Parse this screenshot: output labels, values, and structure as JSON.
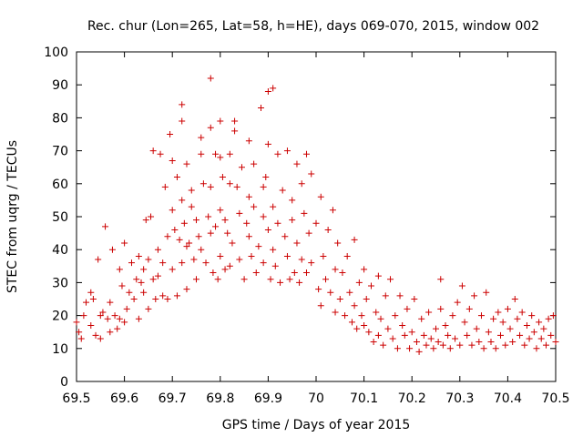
{
  "chart_data": {
    "type": "scatter",
    "title": "Rec. chur (Lon=265, Lat=58, h=HE), days 069-070, 2015, window 002",
    "xlabel": "GPS time / Days of year 2015",
    "ylabel": "STEC from uqrg / TECUs",
    "xlim": [
      69.5,
      70.5
    ],
    "ylim": [
      0,
      100
    ],
    "xticks": [
      "69.5",
      "69.6",
      "69.7",
      "69.8",
      "69.9",
      "70",
      "70.1",
      "70.2",
      "70.3",
      "70.4",
      "70.5"
    ],
    "yticks": [
      "0",
      "10",
      "20",
      "30",
      "40",
      "50",
      "60",
      "70",
      "80",
      "90",
      "100"
    ],
    "grid": false,
    "legend": "none",
    "marker": "+",
    "series": [
      {
        "color": "#cc0000",
        "points": [
          [
            69.5,
            18
          ],
          [
            69.505,
            15
          ],
          [
            69.51,
            13
          ],
          [
            69.515,
            20
          ],
          [
            69.52,
            24
          ],
          [
            69.53,
            27
          ],
          [
            69.53,
            17
          ],
          [
            69.535,
            25
          ],
          [
            69.54,
            14
          ],
          [
            69.545,
            37
          ],
          [
            69.55,
            20
          ],
          [
            69.55,
            13
          ],
          [
            69.555,
            21
          ],
          [
            69.56,
            47
          ],
          [
            69.565,
            19
          ],
          [
            69.57,
            15
          ],
          [
            69.57,
            24
          ],
          [
            69.575,
            40
          ],
          [
            69.58,
            20
          ],
          [
            69.585,
            16
          ],
          [
            69.59,
            34
          ],
          [
            69.59,
            19
          ],
          [
            69.595,
            29
          ],
          [
            69.6,
            42
          ],
          [
            69.6,
            18
          ],
          [
            69.605,
            22
          ],
          [
            69.61,
            27
          ],
          [
            69.615,
            36
          ],
          [
            69.62,
            25
          ],
          [
            69.625,
            31
          ],
          [
            69.63,
            38
          ],
          [
            69.63,
            19
          ],
          [
            69.635,
            30
          ],
          [
            69.64,
            34
          ],
          [
            69.64,
            27
          ],
          [
            69.645,
            49
          ],
          [
            69.65,
            37
          ],
          [
            69.65,
            22
          ],
          [
            69.655,
            50
          ],
          [
            69.66,
            70
          ],
          [
            69.66,
            31
          ],
          [
            69.665,
            25
          ],
          [
            69.67,
            40
          ],
          [
            69.67,
            32
          ],
          [
            69.675,
            69
          ],
          [
            69.68,
            36
          ],
          [
            69.68,
            26
          ],
          [
            69.685,
            59
          ],
          [
            69.69,
            44
          ],
          [
            69.69,
            25
          ],
          [
            69.695,
            75
          ],
          [
            69.7,
            67
          ],
          [
            69.7,
            52
          ],
          [
            69.7,
            34
          ],
          [
            69.705,
            46
          ],
          [
            69.71,
            62
          ],
          [
            69.71,
            26
          ],
          [
            69.715,
            43
          ],
          [
            69.72,
            84
          ],
          [
            69.72,
            79
          ],
          [
            69.72,
            55
          ],
          [
            69.72,
            36
          ],
          [
            69.725,
            48
          ],
          [
            69.73,
            66
          ],
          [
            69.73,
            41
          ],
          [
            69.73,
            28
          ],
          [
            69.735,
            42
          ],
          [
            69.74,
            58
          ],
          [
            69.74,
            53
          ],
          [
            69.745,
            37
          ],
          [
            69.75,
            49
          ],
          [
            69.75,
            31
          ],
          [
            69.755,
            44
          ],
          [
            69.76,
            74
          ],
          [
            69.76,
            69
          ],
          [
            69.76,
            40
          ],
          [
            69.765,
            60
          ],
          [
            69.77,
            36
          ],
          [
            69.775,
            50
          ],
          [
            69.78,
            92
          ],
          [
            69.78,
            77
          ],
          [
            69.78,
            59
          ],
          [
            69.78,
            45
          ],
          [
            69.785,
            33
          ],
          [
            69.79,
            69
          ],
          [
            69.79,
            47
          ],
          [
            69.795,
            31
          ],
          [
            69.8,
            79
          ],
          [
            69.8,
            68
          ],
          [
            69.8,
            52
          ],
          [
            69.8,
            38
          ],
          [
            69.805,
            62
          ],
          [
            69.81,
            49
          ],
          [
            69.81,
            34
          ],
          [
            69.815,
            45
          ],
          [
            69.82,
            69
          ],
          [
            69.82,
            60
          ],
          [
            69.82,
            35
          ],
          [
            69.825,
            42
          ],
          [
            69.83,
            79
          ],
          [
            69.83,
            76
          ],
          [
            69.835,
            59
          ],
          [
            69.84,
            51
          ],
          [
            69.84,
            37
          ],
          [
            69.845,
            65
          ],
          [
            69.85,
            31
          ],
          [
            69.855,
            48
          ],
          [
            69.86,
            73
          ],
          [
            69.86,
            56
          ],
          [
            69.86,
            44
          ],
          [
            69.865,
            38
          ],
          [
            69.87,
            66
          ],
          [
            69.87,
            53
          ],
          [
            69.875,
            33
          ],
          [
            69.88,
            41
          ],
          [
            69.885,
            83
          ],
          [
            69.89,
            59
          ],
          [
            69.89,
            50
          ],
          [
            69.89,
            36
          ],
          [
            69.895,
            62
          ],
          [
            69.9,
            88
          ],
          [
            69.9,
            72
          ],
          [
            69.9,
            46
          ],
          [
            69.905,
            31
          ],
          [
            69.91,
            89
          ],
          [
            69.91,
            53
          ],
          [
            69.91,
            40
          ],
          [
            69.915,
            35
          ],
          [
            69.92,
            69
          ],
          [
            69.92,
            48
          ],
          [
            69.925,
            30
          ],
          [
            69.93,
            58
          ],
          [
            69.935,
            44
          ],
          [
            69.94,
            70
          ],
          [
            69.94,
            38
          ],
          [
            69.945,
            31
          ],
          [
            69.95,
            55
          ],
          [
            69.95,
            49
          ],
          [
            69.955,
            33
          ],
          [
            69.96,
            66
          ],
          [
            69.96,
            42
          ],
          [
            69.965,
            30
          ],
          [
            69.97,
            60
          ],
          [
            69.97,
            37
          ],
          [
            69.975,
            51
          ],
          [
            69.98,
            69
          ],
          [
            69.98,
            33
          ],
          [
            69.985,
            45
          ],
          [
            69.99,
            63
          ],
          [
            69.99,
            36
          ],
          [
            70,
            48
          ],
          [
            70.005,
            28
          ],
          [
            70.01,
            56
          ],
          [
            70.01,
            23
          ],
          [
            70.015,
            38
          ],
          [
            70.02,
            31
          ],
          [
            70.025,
            46
          ],
          [
            70.03,
            27
          ],
          [
            70.035,
            52
          ],
          [
            70.04,
            21
          ],
          [
            70.04,
            34
          ],
          [
            70.045,
            42
          ],
          [
            70.05,
            25
          ],
          [
            70.055,
            33
          ],
          [
            70.06,
            20
          ],
          [
            70.065,
            38
          ],
          [
            70.07,
            27
          ],
          [
            70.075,
            18
          ],
          [
            70.08,
            43
          ],
          [
            70.08,
            23
          ],
          [
            70.085,
            16
          ],
          [
            70.09,
            30
          ],
          [
            70.095,
            20
          ],
          [
            70.1,
            34
          ],
          [
            70.1,
            17
          ],
          [
            70.105,
            25
          ],
          [
            70.11,
            15
          ],
          [
            70.115,
            29
          ],
          [
            70.12,
            12
          ],
          [
            70.125,
            21
          ],
          [
            70.13,
            32
          ],
          [
            70.13,
            14
          ],
          [
            70.135,
            19
          ],
          [
            70.14,
            11
          ],
          [
            70.145,
            26
          ],
          [
            70.15,
            16
          ],
          [
            70.155,
            31
          ],
          [
            70.16,
            13
          ],
          [
            70.165,
            20
          ],
          [
            70.17,
            10
          ],
          [
            70.175,
            26
          ],
          [
            70.18,
            17
          ],
          [
            70.185,
            14
          ],
          [
            70.19,
            22
          ],
          [
            70.195,
            10
          ],
          [
            70.2,
            15
          ],
          [
            70.205,
            25
          ],
          [
            70.21,
            12
          ],
          [
            70.215,
            9
          ],
          [
            70.22,
            19
          ],
          [
            70.225,
            14
          ],
          [
            70.23,
            11
          ],
          [
            70.235,
            21
          ],
          [
            70.24,
            13
          ],
          [
            70.245,
            10
          ],
          [
            70.25,
            16
          ],
          [
            70.255,
            12
          ],
          [
            70.26,
            31
          ],
          [
            70.26,
            22
          ],
          [
            70.265,
            11
          ],
          [
            70.27,
            17
          ],
          [
            70.275,
            14
          ],
          [
            70.28,
            10
          ],
          [
            70.285,
            20
          ],
          [
            70.29,
            13
          ],
          [
            70.295,
            24
          ],
          [
            70.3,
            11
          ],
          [
            70.305,
            29
          ],
          [
            70.31,
            18
          ],
          [
            70.315,
            14
          ],
          [
            70.32,
            22
          ],
          [
            70.325,
            11
          ],
          [
            70.33,
            26
          ],
          [
            70.335,
            16
          ],
          [
            70.34,
            12
          ],
          [
            70.345,
            20
          ],
          [
            70.35,
            10
          ],
          [
            70.355,
            27
          ],
          [
            70.36,
            15
          ],
          [
            70.365,
            12
          ],
          [
            70.37,
            19
          ],
          [
            70.375,
            10
          ],
          [
            70.38,
            21
          ],
          [
            70.385,
            14
          ],
          [
            70.39,
            18
          ],
          [
            70.395,
            11
          ],
          [
            70.4,
            22
          ],
          [
            70.405,
            16
          ],
          [
            70.41,
            12
          ],
          [
            70.415,
            25
          ],
          [
            70.42,
            19
          ],
          [
            70.425,
            14
          ],
          [
            70.43,
            21
          ],
          [
            70.435,
            11
          ],
          [
            70.44,
            17
          ],
          [
            70.445,
            13
          ],
          [
            70.45,
            20
          ],
          [
            70.455,
            15
          ],
          [
            70.46,
            10
          ],
          [
            70.465,
            18
          ],
          [
            70.47,
            13
          ],
          [
            70.475,
            16
          ],
          [
            70.48,
            11
          ],
          [
            70.485,
            19
          ],
          [
            70.49,
            14
          ],
          [
            70.495,
            20
          ],
          [
            70.5,
            12
          ]
        ]
      }
    ]
  }
}
